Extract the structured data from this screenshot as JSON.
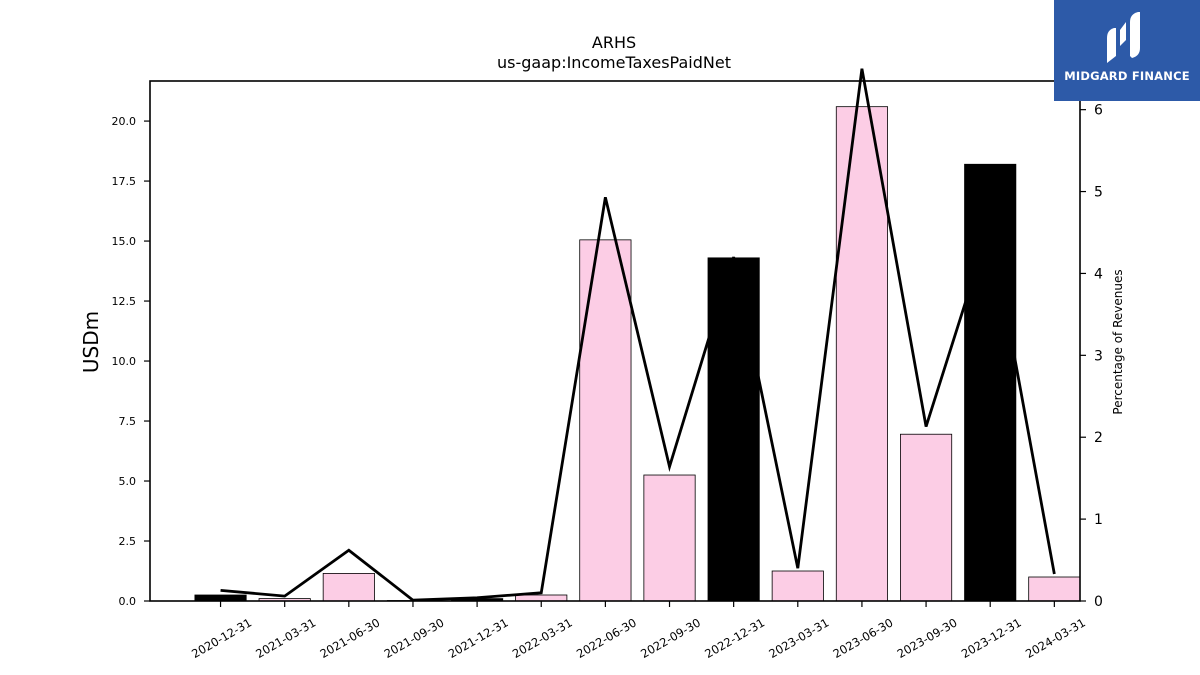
{
  "chart_data": {
    "type": "bar",
    "title": "ARHS",
    "subtitle": "us-gaap:IncomeTaxesPaidNet",
    "ylabel": "USDm",
    "ylabel_right": "Percentage of Revenues",
    "categories": [
      "2020-12-31",
      "2021-03-31",
      "2021-06-30",
      "2021-09-30",
      "2021-12-31",
      "2022-03-31",
      "2022-06-30",
      "2022-09-30",
      "2022-12-31",
      "2023-03-31",
      "2023-06-30",
      "2023-09-30",
      "2023-12-31",
      "2024-03-31"
    ],
    "values": [
      0.25,
      0.1,
      1.15,
      0.02,
      0.1,
      0.25,
      15.05,
      5.25,
      14.3,
      1.25,
      20.6,
      6.95,
      18.2,
      1.0
    ],
    "bar_colors": [
      "#000000",
      "#fccde5",
      "#fccde5",
      "#fccde5",
      "#000000",
      "#fccde5",
      "#fccde5",
      "#fccde5",
      "#000000",
      "#fccde5",
      "#fccde5",
      "#fccde5",
      "#000000",
      "#fccde5"
    ],
    "line_values": [
      0.13,
      0.06,
      0.62,
      0.01,
      0.04,
      0.1,
      4.93,
      1.64,
      4.2,
      0.4,
      6.5,
      2.13,
      4.6,
      0.33
    ],
    "ylim": [
      0,
      21.67
    ],
    "ylim_right": [
      0,
      6.35
    ],
    "yticks": [
      "0.0",
      "2.5",
      "5.0",
      "7.5",
      "10.0",
      "12.5",
      "15.0",
      "17.5",
      "20.0"
    ],
    "yticks_right": [
      "0",
      "1",
      "2",
      "3",
      "4",
      "5",
      "6"
    ]
  },
  "logo": {
    "text": "MIDGARD FINANCE"
  }
}
